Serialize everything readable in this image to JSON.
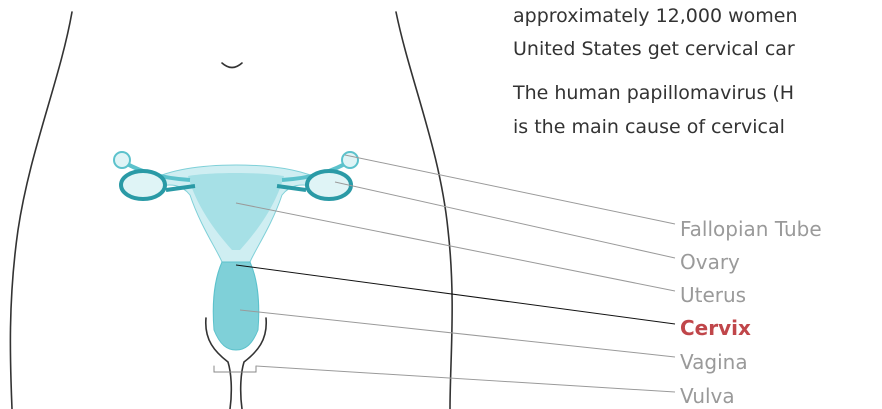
{
  "paragraph": {
    "lines": [
      "approximately 12,000 women",
      "United States get cervical car",
      "The human papillomavirus (H",
      "is the main cause of cervical"
    ]
  },
  "labels": [
    "Fallopian Tube",
    "Ovary",
    "Uterus",
    "Cervix",
    "Vagina",
    "Vulva"
  ]
}
